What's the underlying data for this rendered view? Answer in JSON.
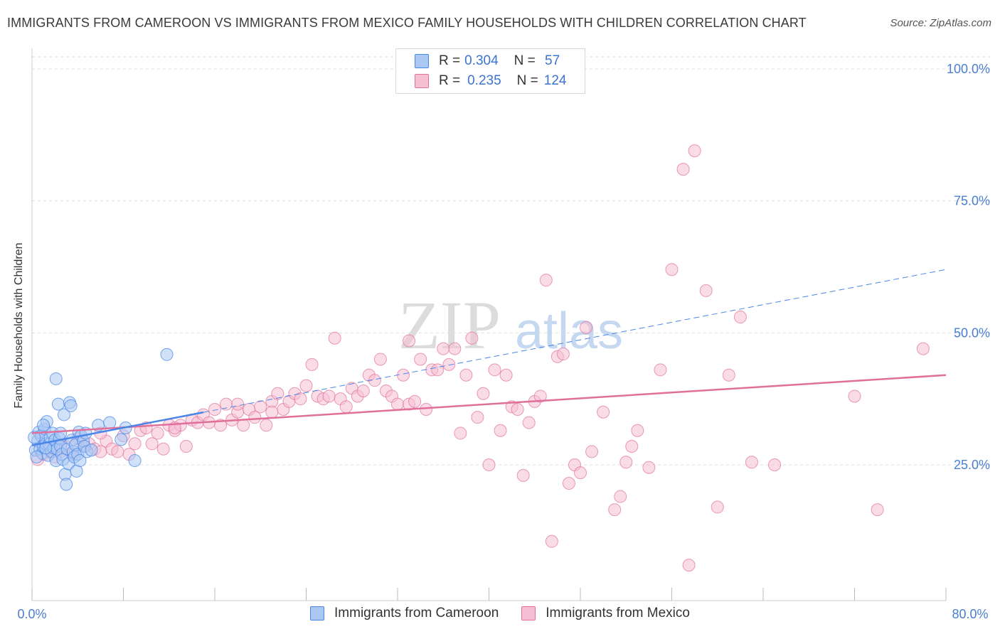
{
  "title": "IMMIGRANTS FROM CAMEROON VS IMMIGRANTS FROM MEXICO FAMILY HOUSEHOLDS WITH CHILDREN CORRELATION CHART",
  "source": "Source: ZipAtlas.com",
  "watermark": {
    "zip": "ZIP",
    "atlas": "atlas"
  },
  "legend": {
    "cameroon": {
      "r_label": "R = ",
      "r": "0.304",
      "n_label": "N = ",
      "n": " 57"
    },
    "mexico": {
      "r_label": "R = ",
      "r": "0.235",
      "n_label": "N = ",
      "n": "124"
    }
  },
  "colors": {
    "cameroon": "#4a86e8",
    "cameroon_fill": "#aac8f2",
    "mexico": "#e0709a",
    "mexico_fill": "#f6bfd3"
  },
  "chart_data": {
    "type": "scatter",
    "title": "IMMIGRANTS FROM CAMEROON VS IMMIGRANTS FROM MEXICO FAMILY HOUSEHOLDS WITH CHILDREN CORRELATION CHART",
    "xlabel": "",
    "ylabel": "Family Households with Children",
    "xlim": [
      0,
      80
    ],
    "ylim": [
      0,
      105
    ],
    "x_tick_labels": [
      "0.0%",
      "80.0%"
    ],
    "y_ticks": [
      25,
      50,
      75,
      100
    ],
    "y_tick_labels": [
      "25.0%",
      "50.0%",
      "75.0%",
      "100.0%"
    ],
    "grid": true,
    "series": [
      {
        "name": "Immigrants from Cameroon",
        "R": 0.304,
        "N": 57,
        "trend": {
          "x0": 0,
          "y0": 28.7,
          "x1": 80,
          "y1": 62
        },
        "trend_solid_until_x": 15,
        "points": [
          [
            0.3,
            27.8
          ],
          [
            0.5,
            29.5
          ],
          [
            0.6,
            31.2
          ],
          [
            0.7,
            28.0
          ],
          [
            0.8,
            30.5
          ],
          [
            0.9,
            27.2
          ],
          [
            1.0,
            28.5
          ],
          [
            1.1,
            31.8
          ],
          [
            1.2,
            29.0
          ],
          [
            1.3,
            33.2
          ],
          [
            1.4,
            26.8
          ],
          [
            1.5,
            28.9
          ],
          [
            1.6,
            30.2
          ],
          [
            1.7,
            27.5
          ],
          [
            1.8,
            31.0
          ],
          [
            1.9,
            28.2
          ],
          [
            2.0,
            29.7
          ],
          [
            2.1,
            25.8
          ],
          [
            2.2,
            28.0
          ],
          [
            2.3,
            36.5
          ],
          [
            2.4,
            30.0
          ],
          [
            2.5,
            28.5
          ],
          [
            2.6,
            27.0
          ],
          [
            2.7,
            26.0
          ],
          [
            2.8,
            34.5
          ],
          [
            2.9,
            23.2
          ],
          [
            3.0,
            21.3
          ],
          [
            3.1,
            28.0
          ],
          [
            3.2,
            25.2
          ],
          [
            3.3,
            36.8
          ],
          [
            3.4,
            36.2
          ],
          [
            3.5,
            29.7
          ],
          [
            3.6,
            27.5
          ],
          [
            3.7,
            26.5
          ],
          [
            3.8,
            28.8
          ],
          [
            3.9,
            23.8
          ],
          [
            4.0,
            27.0
          ],
          [
            4.1,
            31.2
          ],
          [
            4.2,
            25.8
          ],
          [
            4.3,
            30.5
          ],
          [
            4.5,
            29.5
          ],
          [
            4.6,
            28.5
          ],
          [
            4.7,
            31.0
          ],
          [
            4.8,
            27.5
          ],
          [
            5.2,
            27.8
          ],
          [
            5.8,
            32.5
          ],
          [
            6.8,
            33.0
          ],
          [
            7.8,
            29.8
          ],
          [
            8.2,
            32.0
          ],
          [
            9.0,
            25.8
          ],
          [
            11.8,
            45.9
          ],
          [
            2.1,
            41.3
          ],
          [
            1.0,
            32.5
          ],
          [
            0.4,
            26.5
          ],
          [
            0.2,
            30.2
          ],
          [
            1.2,
            28.2
          ],
          [
            2.5,
            31.0
          ]
        ]
      },
      {
        "name": "Immigrants from Mexico",
        "R": 0.235,
        "N": 124,
        "trend": {
          "x0": 0,
          "y0": 31.0,
          "x1": 80,
          "y1": 42.0
        },
        "points": [
          [
            0.5,
            26.0
          ],
          [
            1.0,
            27.0
          ],
          [
            1.5,
            28.0
          ],
          [
            2.0,
            26.5
          ],
          [
            2.5,
            27.5
          ],
          [
            3.0,
            28.5
          ],
          [
            3.5,
            27.0
          ],
          [
            4.0,
            30.0
          ],
          [
            4.5,
            28.5
          ],
          [
            5.0,
            29.0
          ],
          [
            5.5,
            28.0
          ],
          [
            6.0,
            27.5
          ],
          [
            6.5,
            29.5
          ],
          [
            7.0,
            28.0
          ],
          [
            7.5,
            27.5
          ],
          [
            8.0,
            30.5
          ],
          [
            8.5,
            27.0
          ],
          [
            9.0,
            29.0
          ],
          [
            9.5,
            31.5
          ],
          [
            10.0,
            32.0
          ],
          [
            10.5,
            29.0
          ],
          [
            11.0,
            31.0
          ],
          [
            11.5,
            28.0
          ],
          [
            12.0,
            32.5
          ],
          [
            12.5,
            31.5
          ],
          [
            13.0,
            32.5
          ],
          [
            13.5,
            28.5
          ],
          [
            14.0,
            33.5
          ],
          [
            14.5,
            33.0
          ],
          [
            15.0,
            34.5
          ],
          [
            15.5,
            33.0
          ],
          [
            16.0,
            35.5
          ],
          [
            16.5,
            32.5
          ],
          [
            17.0,
            36.5
          ],
          [
            17.5,
            33.5
          ],
          [
            18.0,
            35.0
          ],
          [
            18.5,
            32.5
          ],
          [
            19.0,
            35.5
          ],
          [
            19.5,
            34.0
          ],
          [
            20.0,
            36.0
          ],
          [
            20.5,
            32.5
          ],
          [
            21.0,
            37.0
          ],
          [
            21.5,
            38.5
          ],
          [
            22.0,
            35.5
          ],
          [
            22.5,
            37.0
          ],
          [
            23.0,
            38.5
          ],
          [
            23.5,
            37.5
          ],
          [
            24.0,
            40.0
          ],
          [
            24.5,
            44.0
          ],
          [
            25.0,
            38.0
          ],
          [
            25.5,
            37.5
          ],
          [
            26.0,
            38.0
          ],
          [
            26.5,
            49.0
          ],
          [
            27.0,
            37.5
          ],
          [
            27.5,
            36.0
          ],
          [
            28.0,
            39.5
          ],
          [
            28.5,
            38.0
          ],
          [
            29.0,
            39.0
          ],
          [
            29.5,
            42.0
          ],
          [
            30.0,
            41.0
          ],
          [
            30.5,
            45.0
          ],
          [
            31.0,
            39.0
          ],
          [
            31.5,
            38.0
          ],
          [
            32.0,
            36.5
          ],
          [
            32.5,
            42.0
          ],
          [
            33.0,
            36.5
          ],
          [
            33.5,
            37.0
          ],
          [
            34.0,
            45.0
          ],
          [
            34.5,
            35.5
          ],
          [
            35.0,
            43.0
          ],
          [
            35.5,
            43.0
          ],
          [
            36.0,
            47.0
          ],
          [
            36.5,
            44.0
          ],
          [
            37.0,
            47.0
          ],
          [
            37.5,
            31.0
          ],
          [
            38.0,
            42.0
          ],
          [
            38.5,
            49.0
          ],
          [
            39.0,
            34.0
          ],
          [
            39.5,
            38.5
          ],
          [
            40.0,
            25.0
          ],
          [
            40.5,
            43.0
          ],
          [
            41.0,
            31.5
          ],
          [
            41.5,
            42.0
          ],
          [
            42.0,
            36.0
          ],
          [
            42.5,
            35.5
          ],
          [
            43.0,
            23.0
          ],
          [
            43.5,
            33.0
          ],
          [
            44.0,
            37.0
          ],
          [
            44.5,
            38.0
          ],
          [
            45.0,
            60.0
          ],
          [
            45.5,
            10.5
          ],
          [
            46.0,
            45.5
          ],
          [
            46.5,
            46.0
          ],
          [
            47.0,
            21.5
          ],
          [
            47.5,
            25.0
          ],
          [
            48.0,
            23.5
          ],
          [
            48.5,
            51.0
          ],
          [
            49.0,
            27.5
          ],
          [
            50.0,
            35.0
          ],
          [
            51.0,
            16.5
          ],
          [
            51.5,
            19.0
          ],
          [
            52.0,
            25.5
          ],
          [
            52.5,
            28.5
          ],
          [
            53.0,
            31.5
          ],
          [
            54.0,
            24.5
          ],
          [
            55.0,
            43.0
          ],
          [
            56.0,
            62.0
          ],
          [
            57.0,
            81.0
          ],
          [
            57.5,
            6.0
          ],
          [
            58.0,
            84.5
          ],
          [
            59.0,
            58.0
          ],
          [
            60.0,
            17.0
          ],
          [
            61.0,
            42.0
          ],
          [
            62.0,
            53.0
          ],
          [
            63.0,
            25.5
          ],
          [
            65.0,
            25.0
          ],
          [
            72.0,
            38.0
          ],
          [
            74.0,
            16.5
          ],
          [
            78.0,
            47.0
          ],
          [
            21.0,
            35.0
          ],
          [
            12.5,
            32.0
          ],
          [
            6.0,
            31.0
          ],
          [
            18.0,
            36.5
          ],
          [
            33.0,
            48.5
          ]
        ]
      }
    ]
  },
  "bottom_legend": [
    "Immigrants from Cameroon",
    "Immigrants from Mexico"
  ]
}
